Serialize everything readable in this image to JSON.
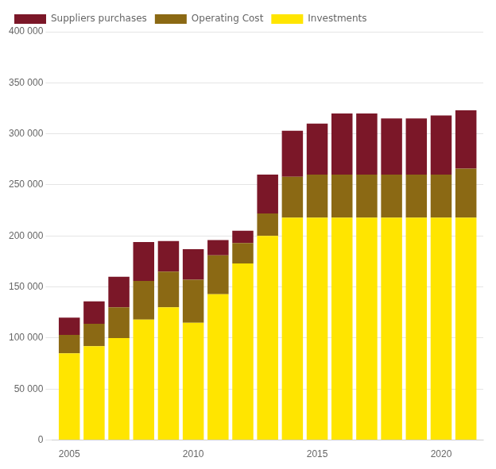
{
  "chart_data": {
    "type": "bar",
    "stacked": true,
    "x": [
      2005,
      2006,
      2007,
      2008,
      2009,
      2010,
      2011,
      2012,
      2013,
      2014,
      2015,
      2016,
      2017,
      2018,
      2019,
      2020,
      2021
    ],
    "series": [
      {
        "name": "Investments",
        "color": "#FFE500",
        "values": [
          85000,
          92000,
          100000,
          118000,
          130000,
          115000,
          143000,
          173000,
          200000,
          218000,
          218000,
          218000,
          218000,
          218000,
          218000,
          218000,
          218000
        ]
      },
      {
        "name": "Operating Cost",
        "color": "#8B6914",
        "values": [
          18000,
          22000,
          30000,
          38000,
          35000,
          42000,
          38000,
          20000,
          22000,
          40000,
          42000,
          42000,
          42000,
          42000,
          42000,
          42000,
          48000
        ]
      },
      {
        "name": "Suppliers purchases",
        "color": "#7B1728",
        "values": [
          17000,
          22000,
          30000,
          38000,
          30000,
          30000,
          15000,
          12000,
          38000,
          45000,
          50000,
          60000,
          60000,
          55000,
          55000,
          58000,
          57000
        ]
      }
    ],
    "xlim": [
      2004.3,
      2021.7
    ],
    "xticks": [
      2005,
      2010,
      2015,
      2020
    ],
    "ylim": [
      0,
      400000
    ],
    "yticks": [
      0,
      {
        "value": 50000,
        "label": "50 000"
      },
      {
        "value": 100000,
        "label": "100 000"
      },
      {
        "value": 150000,
        "label": "150 000"
      },
      {
        "value": 200000,
        "label": "200 000"
      },
      {
        "value": 250000,
        "label": "250 000"
      },
      {
        "value": 300000,
        "label": "300 000"
      },
      {
        "value": 350000,
        "label": "350 000"
      },
      {
        "value": 400000,
        "label": "400 000"
      }
    ],
    "grid": true,
    "legend": "upper left"
  }
}
